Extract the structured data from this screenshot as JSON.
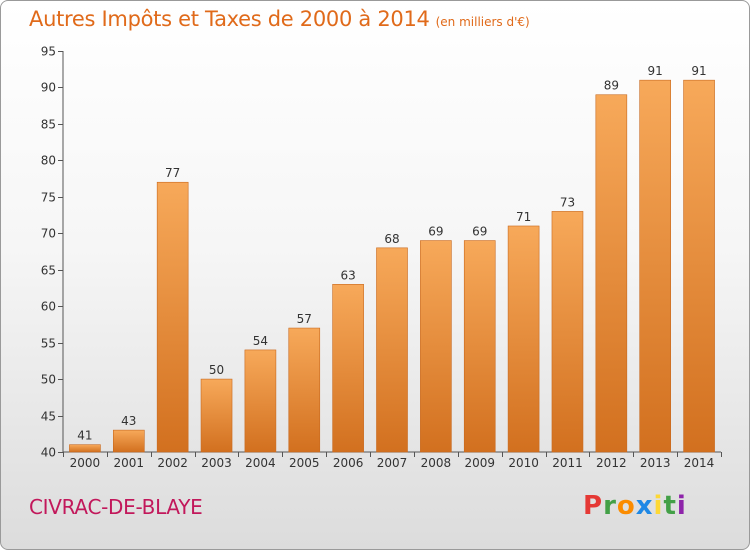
{
  "chart_data": {
    "type": "bar",
    "title": "Autres Impôts et Taxes de 2000 à 2014",
    "subtitle": "(en milliers d'€)",
    "categories": [
      "2000",
      "2001",
      "2002",
      "2003",
      "2004",
      "2005",
      "2006",
      "2007",
      "2008",
      "2009",
      "2010",
      "2011",
      "2012",
      "2013",
      "2014"
    ],
    "values": [
      41,
      43,
      77,
      50,
      54,
      57,
      63,
      68,
      69,
      69,
      71,
      73,
      89,
      91,
      91
    ],
    "ylim": [
      40,
      95
    ],
    "yticks": [
      40,
      45,
      50,
      55,
      60,
      65,
      70,
      75,
      80,
      85,
      90,
      95
    ],
    "xlabel": "",
    "ylabel": "",
    "grid": false,
    "bar_color_top": "#f7a95a",
    "bar_color_bottom": "#d2701f"
  },
  "footer": {
    "commune": "CIVRAC-DE-BLAYE",
    "brand": "Proxiti"
  },
  "colors": {
    "title": "#e06a1a",
    "commune": "#c2185b",
    "brand": [
      "#e53935",
      "#43a047",
      "#fb8c00",
      "#1e88e5",
      "#fdd835",
      "#43a047",
      "#8e24aa"
    ]
  }
}
